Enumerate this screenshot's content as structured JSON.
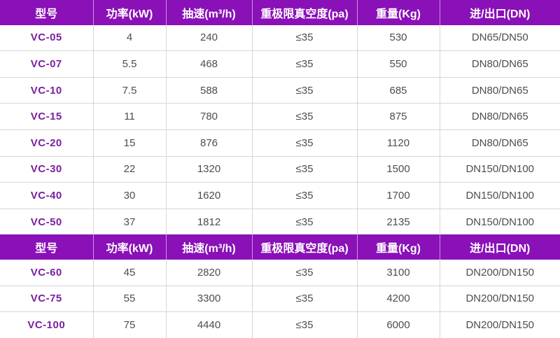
{
  "colors": {
    "header_bg": "#8a10b7",
    "header_text": "#ffffff",
    "model_text": "#7b1fa2",
    "cell_text": "#4d4d4d",
    "border": "#d6d6d6",
    "row_bg": "#ffffff"
  },
  "chart_data": {
    "type": "table",
    "columns": [
      "型号",
      "功率(kW)",
      "抽速(m³/h)",
      "重极限真空度(pa)",
      "重量(Kg)",
      "进/出口(DN)"
    ],
    "column_semantics": [
      "model",
      "power-kw",
      "pumping-speed-m3h",
      "ultimate-vacuum-pa",
      "weight-kg",
      "inlet-outlet-dn"
    ],
    "sections": [
      {
        "header": [
          "型号",
          "功率(kW)",
          "抽速(m³/h)",
          "重极限真空度(pa)",
          "重量(Kg)",
          "进/出口(DN)"
        ],
        "rows": [
          [
            "VC-05",
            "4",
            "240",
            "≤35",
            "530",
            "DN65/DN50"
          ],
          [
            "VC-07",
            "5.5",
            "468",
            "≤35",
            "550",
            "DN80/DN65"
          ],
          [
            "VC-10",
            "7.5",
            "588",
            "≤35",
            "685",
            "DN80/DN65"
          ],
          [
            "VC-15",
            "11",
            "780",
            "≤35",
            "875",
            "DN80/DN65"
          ],
          [
            "VC-20",
            "15",
            "876",
            "≤35",
            "1120",
            "DN80/DN65"
          ],
          [
            "VC-30",
            "22",
            "1320",
            "≤35",
            "1500",
            "DN150/DN100"
          ],
          [
            "VC-40",
            "30",
            "1620",
            "≤35",
            "1700",
            "DN150/DN100"
          ],
          [
            "VC-50",
            "37",
            "1812",
            "≤35",
            "2135",
            "DN150/DN100"
          ]
        ]
      },
      {
        "header": [
          "型号",
          "功率(kW)",
          "抽速(m³/h)",
          "重极限真空度(pa)",
          "重量(Kg)",
          "进/出口(DN)"
        ],
        "rows": [
          [
            "VC-60",
            "45",
            "2820",
            "≤35",
            "3100",
            "DN200/DN150"
          ],
          [
            "VC-75",
            "55",
            "3300",
            "≤35",
            "4200",
            "DN200/DN150"
          ],
          [
            "VC-100",
            "75",
            "4440",
            "≤35",
            "6000",
            "DN200/DN150"
          ]
        ]
      }
    ]
  }
}
